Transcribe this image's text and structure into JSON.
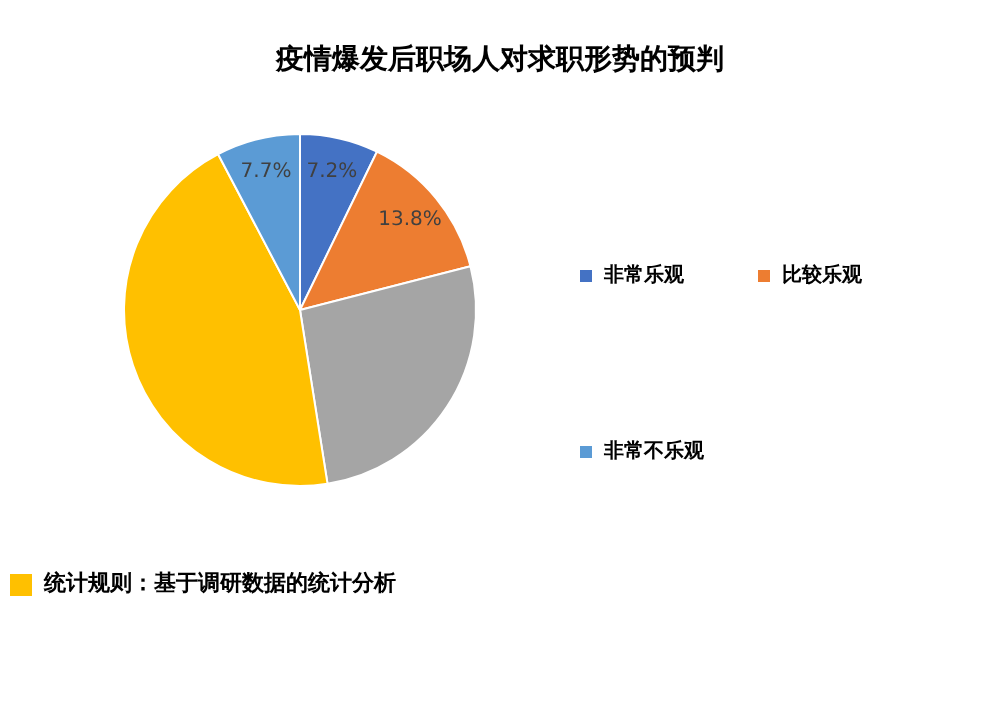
{
  "chart_data": {
    "type": "pie",
    "title": "疫情爆发后职场人对求职形势的预判",
    "categories": [
      "非常乐观",
      "比较乐观",
      null,
      null,
      "非常不乐观"
    ],
    "values": [
      7.2,
      13.8,
      26.5,
      44.8,
      7.7
    ],
    "colors": [
      "#4472c4",
      "#ed7d31",
      "#a5a5a5",
      "#ffc000",
      "#5b9bd5"
    ],
    "value_labels": [
      "7.2%",
      "13.8%",
      null,
      null,
      "7.7%"
    ],
    "legend": "right",
    "annotations": [
      "统计规则：基于调研数据的统计分析"
    ]
  }
}
